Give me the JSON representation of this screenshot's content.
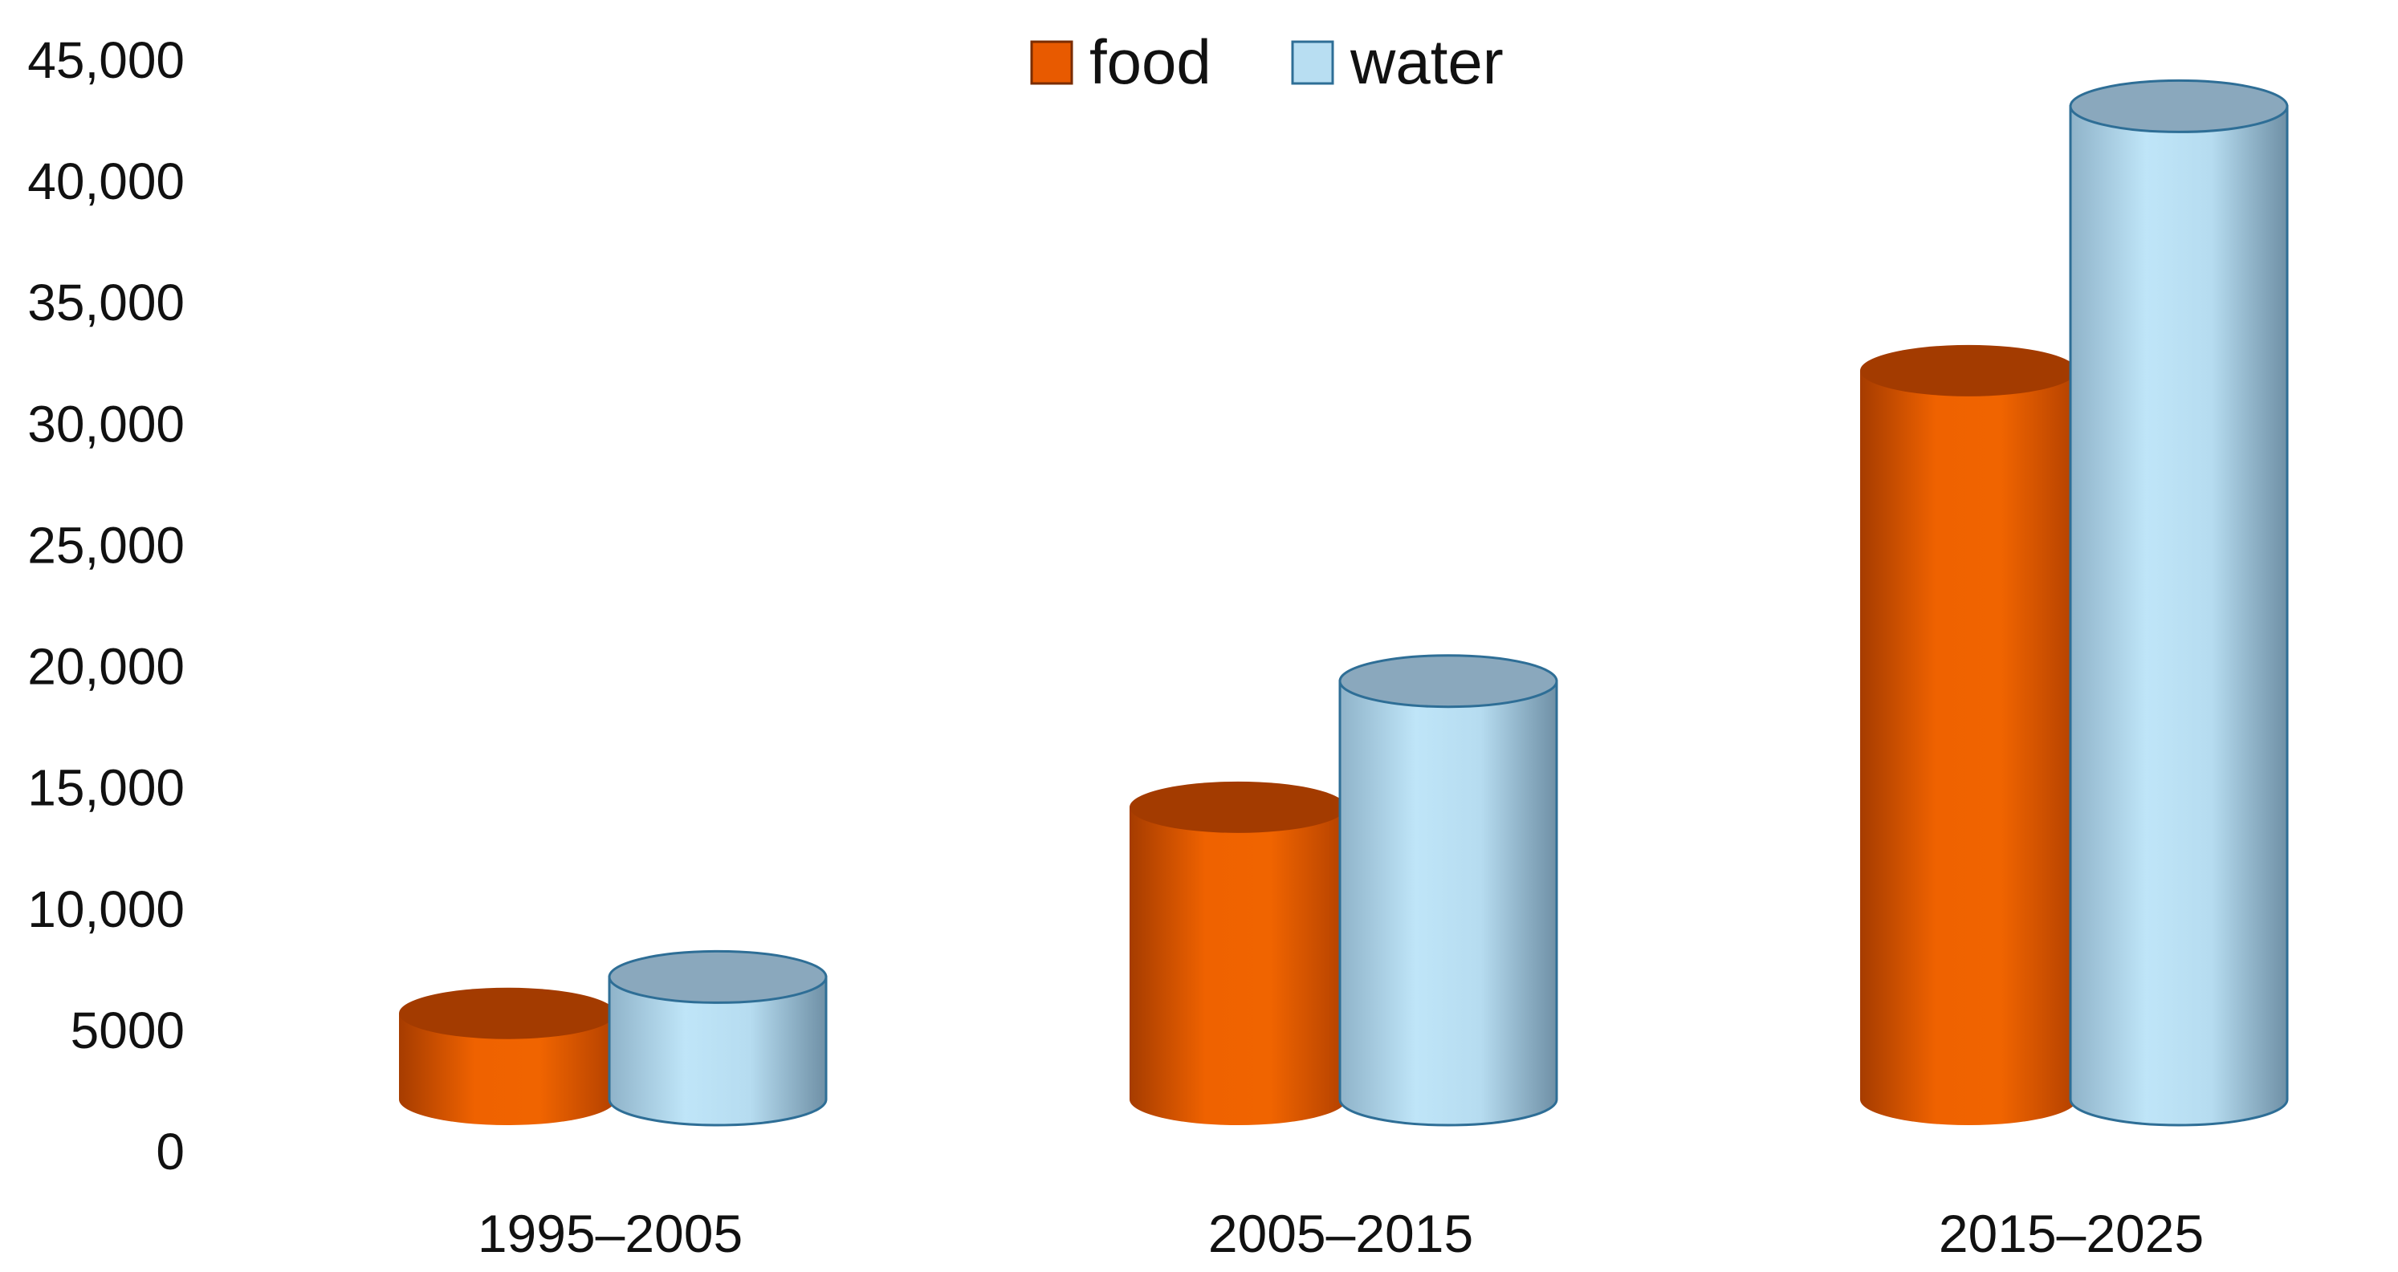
{
  "chart_data": {
    "type": "bar",
    "style": "3d-cylinder",
    "categories": [
      "1995–2005",
      "2005–2015",
      "2015–2025"
    ],
    "series": [
      {
        "name": "food",
        "values": [
          5700,
          14200,
          32200
        ],
        "color": "#e85a00",
        "top_color": "#a33b00"
      },
      {
        "name": "water",
        "values": [
          7200,
          19400,
          43100
        ],
        "color": "#b8def2",
        "top_color": "#8aa8bd",
        "edge_color": "#2e6e96"
      }
    ],
    "ylim": [
      0,
      45000
    ],
    "yticks": [
      0,
      5000,
      10000,
      15000,
      20000,
      25000,
      30000,
      35000,
      40000,
      45000
    ],
    "ytick_labels": [
      "0",
      "5000",
      "10,000",
      "15,000",
      "20,000",
      "25,000",
      "30,000",
      "35,000",
      "40,000",
      "45,000"
    ],
    "grid": false,
    "legend": {
      "position": "top-center"
    }
  }
}
